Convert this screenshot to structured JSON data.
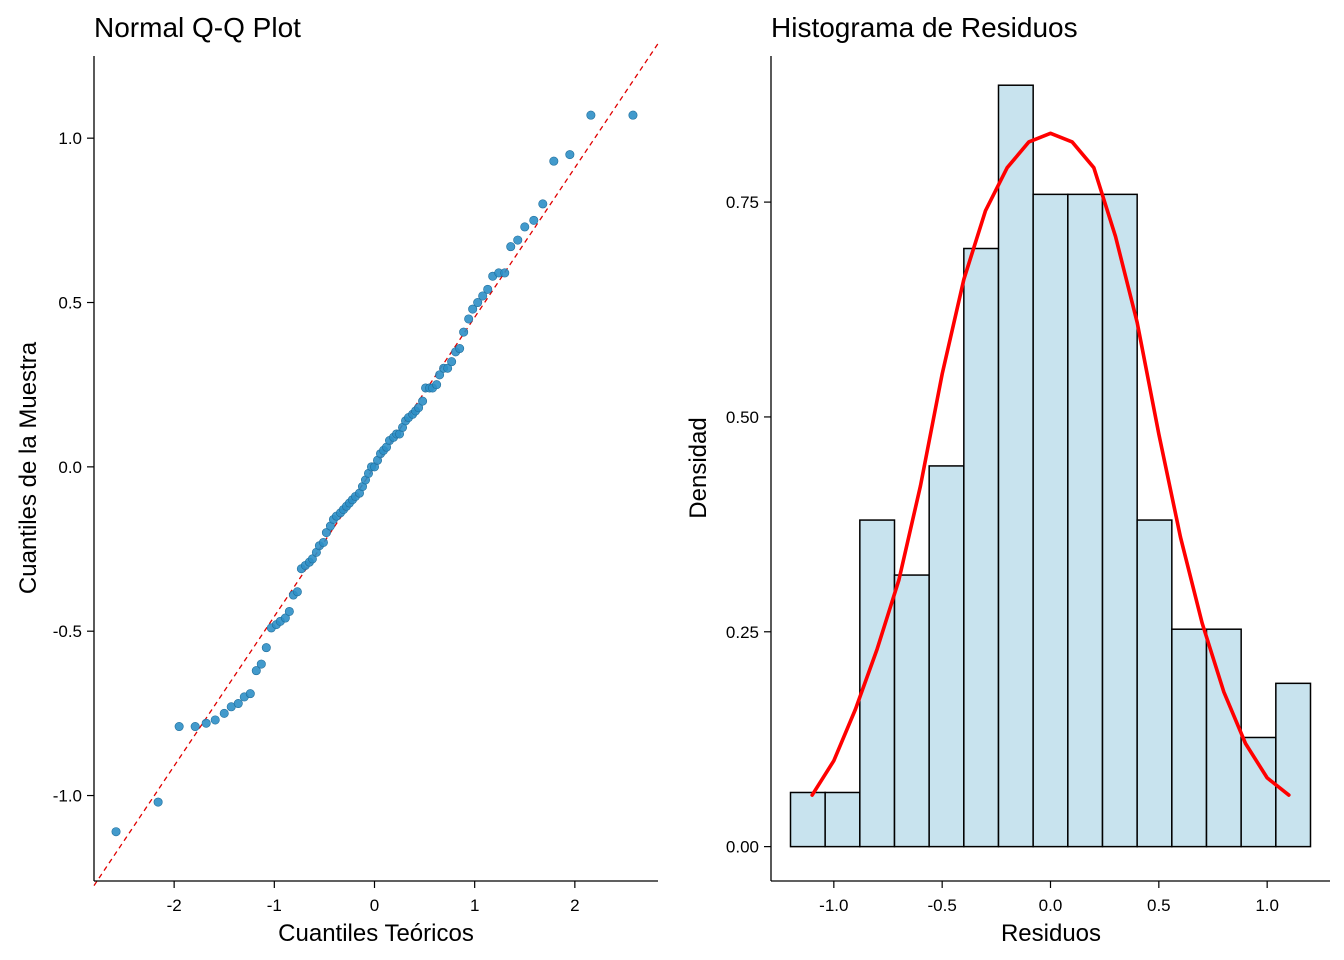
{
  "chart_data": [
    {
      "type": "scatter",
      "title": "Normal Q-Q Plot",
      "xlabel": "Cuantiles Teóricos",
      "ylabel": "Cuantiles de la Muestra",
      "xlim": [
        -2.8,
        2.83
      ],
      "ylim": [
        -1.26,
        1.25
      ],
      "xticks": [
        -2,
        -1,
        0,
        1,
        2
      ],
      "xtick_labels": [
        "-2",
        "-1",
        "0",
        "1",
        "2"
      ],
      "yticks": [
        -1.0,
        -0.5,
        0.0,
        0.5,
        1.0
      ],
      "ytick_labels": [
        "-1.0",
        "-0.5",
        "0.0",
        "0.5",
        "1.0"
      ],
      "grid": false,
      "point_color": "#2E8FC6",
      "reference_line": {
        "intercept": 0.0,
        "slope": 0.455,
        "color": "#E00000",
        "style": "dashed"
      },
      "points": [
        [
          -2.58,
          -1.11
        ],
        [
          -2.16,
          -1.02
        ],
        [
          -1.95,
          -0.79
        ],
        [
          -1.79,
          -0.79
        ],
        [
          -1.68,
          -0.78
        ],
        [
          -1.59,
          -0.77
        ],
        [
          -1.5,
          -0.75
        ],
        [
          -1.43,
          -0.73
        ],
        [
          -1.36,
          -0.72
        ],
        [
          -1.3,
          -0.7
        ],
        [
          -1.24,
          -0.69
        ],
        [
          -1.18,
          -0.62
        ],
        [
          -1.13,
          -0.6
        ],
        [
          -1.08,
          -0.55
        ],
        [
          -1.03,
          -0.49
        ],
        [
          -0.98,
          -0.48
        ],
        [
          -0.94,
          -0.47
        ],
        [
          -0.89,
          -0.46
        ],
        [
          -0.85,
          -0.44
        ],
        [
          -0.81,
          -0.39
        ],
        [
          -0.77,
          -0.38
        ],
        [
          -0.73,
          -0.31
        ],
        [
          -0.69,
          -0.3
        ],
        [
          -0.65,
          -0.29
        ],
        [
          -0.62,
          -0.28
        ],
        [
          -0.58,
          -0.26
        ],
        [
          -0.55,
          -0.24
        ],
        [
          -0.51,
          -0.23
        ],
        [
          -0.48,
          -0.2
        ],
        [
          -0.44,
          -0.18
        ],
        [
          -0.41,
          -0.16
        ],
        [
          -0.38,
          -0.15
        ],
        [
          -0.34,
          -0.14
        ],
        [
          -0.31,
          -0.13
        ],
        [
          -0.28,
          -0.12
        ],
        [
          -0.25,
          -0.11
        ],
        [
          -0.22,
          -0.1
        ],
        [
          -0.19,
          -0.09
        ],
        [
          -0.15,
          -0.08
        ],
        [
          -0.12,
          -0.06
        ],
        [
          -0.09,
          -0.04
        ],
        [
          -0.06,
          -0.02
        ],
        [
          -0.03,
          0.0
        ],
        [
          0.0,
          0.0
        ],
        [
          0.03,
          0.02
        ],
        [
          0.06,
          0.04
        ],
        [
          0.09,
          0.05
        ],
        [
          0.12,
          0.06
        ],
        [
          0.15,
          0.08
        ],
        [
          0.19,
          0.09
        ],
        [
          0.22,
          0.1
        ],
        [
          0.25,
          0.1
        ],
        [
          0.28,
          0.12
        ],
        [
          0.31,
          0.14
        ],
        [
          0.34,
          0.15
        ],
        [
          0.38,
          0.16
        ],
        [
          0.41,
          0.17
        ],
        [
          0.44,
          0.18
        ],
        [
          0.48,
          0.2
        ],
        [
          0.51,
          0.24
        ],
        [
          0.55,
          0.24
        ],
        [
          0.58,
          0.24
        ],
        [
          0.62,
          0.25
        ],
        [
          0.65,
          0.28
        ],
        [
          0.69,
          0.3
        ],
        [
          0.73,
          0.3
        ],
        [
          0.77,
          0.32
        ],
        [
          0.81,
          0.35
        ],
        [
          0.85,
          0.36
        ],
        [
          0.89,
          0.41
        ],
        [
          0.94,
          0.45
        ],
        [
          0.98,
          0.48
        ],
        [
          1.03,
          0.5
        ],
        [
          1.08,
          0.52
        ],
        [
          1.13,
          0.54
        ],
        [
          1.18,
          0.58
        ],
        [
          1.24,
          0.59
        ],
        [
          1.3,
          0.59
        ],
        [
          1.36,
          0.67
        ],
        [
          1.43,
          0.69
        ],
        [
          1.5,
          0.73
        ],
        [
          1.59,
          0.75
        ],
        [
          1.68,
          0.8
        ],
        [
          1.79,
          0.93
        ],
        [
          1.95,
          0.95
        ],
        [
          2.16,
          1.07
        ],
        [
          2.58,
          1.07
        ]
      ]
    },
    {
      "type": "bar",
      "subtype": "histogram",
      "title": "Histograma de Residuos",
      "xlabel": "Residuos",
      "ylabel": "Densidad",
      "xlim": [
        -1.29,
        1.29
      ],
      "ylim": [
        -0.04,
        0.92
      ],
      "xticks": [
        -1.0,
        -0.5,
        0.0,
        0.5,
        1.0
      ],
      "xtick_labels": [
        "-1.0",
        "-0.5",
        "0.0",
        "0.5",
        "1.0"
      ],
      "yticks": [
        0.0,
        0.25,
        0.5,
        0.75
      ],
      "ytick_labels": [
        "0.00",
        "0.25",
        "0.50",
        "0.75"
      ],
      "grid": false,
      "bar_fill": "#C8E3EE",
      "bar_stroke": "#000000",
      "density_color": "#FF0000",
      "bin_edges": [
        -1.2,
        -1.04,
        -0.88,
        -0.72,
        -0.56,
        -0.4,
        -0.24,
        -0.08,
        0.08,
        0.24,
        0.4,
        0.56,
        0.72,
        0.88,
        1.04,
        1.2
      ],
      "values": [
        0.063,
        0.063,
        0.38,
        0.316,
        0.443,
        0.696,
        0.886,
        0.759,
        0.759,
        0.759,
        0.38,
        0.253,
        0.253,
        0.127,
        0.19
      ],
      "density_curve": {
        "x": [
          -1.1,
          -1.0,
          -0.9,
          -0.8,
          -0.7,
          -0.6,
          -0.5,
          -0.4,
          -0.3,
          -0.2,
          -0.1,
          0.0,
          0.1,
          0.2,
          0.3,
          0.4,
          0.5,
          0.6,
          0.7,
          0.8,
          0.9,
          1.0,
          1.1
        ],
        "y": [
          0.06,
          0.1,
          0.16,
          0.23,
          0.31,
          0.42,
          0.55,
          0.66,
          0.74,
          0.79,
          0.82,
          0.83,
          0.82,
          0.79,
          0.71,
          0.61,
          0.48,
          0.36,
          0.26,
          0.18,
          0.12,
          0.08,
          0.06
        ]
      }
    }
  ]
}
